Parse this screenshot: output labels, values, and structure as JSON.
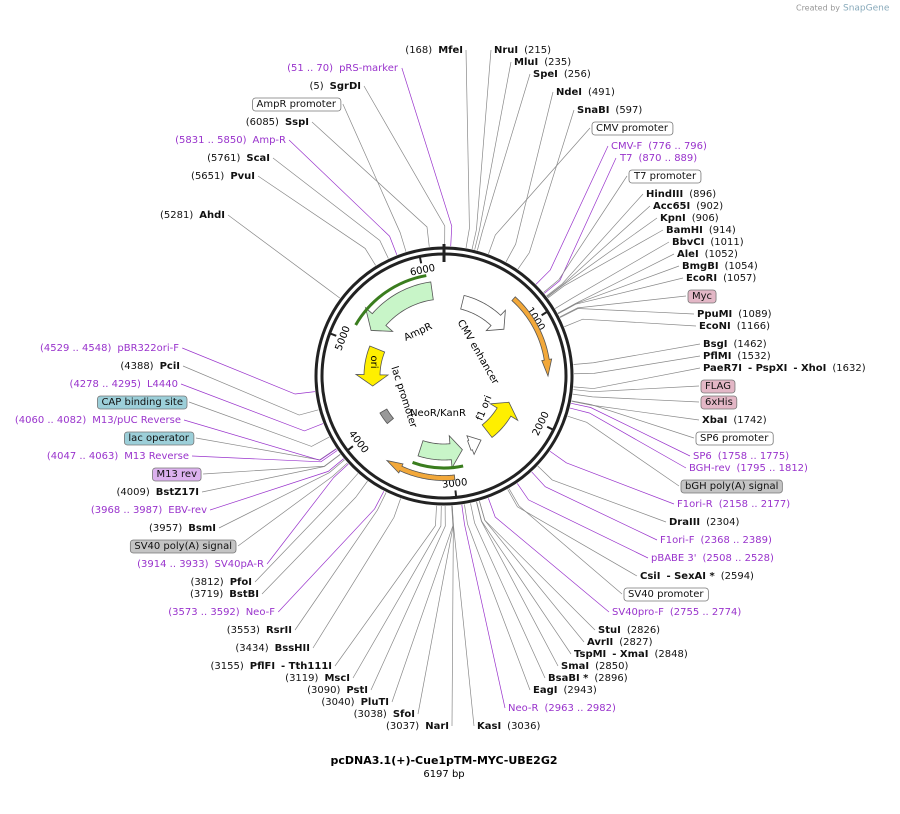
{
  "credit": "Created by",
  "brand": "SnapGene",
  "title": "pcDNA3.1(+)-Cue1pTM-MYC-UBE2G2",
  "length": "6197 bp",
  "ring_ticks": [
    1000,
    2000,
    3000,
    4000,
    5000,
    6000
  ],
  "inner_features": [
    "AmpR",
    "ori",
    "CMV enhancer",
    "lac promoter",
    "NeoR/KanR",
    "f1 ori"
  ],
  "labels": [
    {
      "names": [
        "MfeI"
      ],
      "site": "(168)"
    },
    {
      "names": [
        "NruI"
      ],
      "site": "(215)"
    },
    {
      "names": [
        "MluI"
      ],
      "site": "(235)"
    },
    {
      "names": [
        "SpeI"
      ],
      "site": "(256)"
    },
    {
      "names": [
        "NdeI"
      ],
      "site": "(491)"
    },
    {
      "names": [
        "SnaBI"
      ],
      "site": "(597)"
    },
    {
      "names": [
        "CMV promoter"
      ],
      "fill": "#ffffff"
    },
    {
      "names": [
        "CMV-F"
      ],
      "site": "(776 .. 796)",
      "color": "#9933cc"
    },
    {
      "names": [
        "T7"
      ],
      "site": "(870 .. 889)",
      "color": "#9933cc"
    },
    {
      "names": [
        "T7 promoter"
      ],
      "fill": "#ffffff"
    },
    {
      "names": [
        "HindIII"
      ],
      "site": "(896)"
    },
    {
      "names": [
        "Acc65I"
      ],
      "site": "(902)"
    },
    {
      "names": [
        "KpnI"
      ],
      "site": "(906)"
    },
    {
      "names": [
        "BamHI"
      ],
      "site": "(914)"
    },
    {
      "names": [
        "BbvCI"
      ],
      "site": "(1011)"
    },
    {
      "names": [
        "AleI"
      ],
      "site": "(1052)"
    },
    {
      "names": [
        "BmgBI"
      ],
      "site": "(1054)"
    },
    {
      "names": [
        "EcoRI"
      ],
      "site": "(1057)"
    },
    {
      "names": [
        "Myc"
      ],
      "fill": "#e3b7c6"
    },
    {
      "names": [
        "PpuMI"
      ],
      "site": "(1089)"
    },
    {
      "names": [
        "EcoNI"
      ],
      "site": "(1166)"
    },
    {
      "names": [
        "BsgI"
      ],
      "site": "(1462)"
    },
    {
      "names": [
        "PflMI"
      ],
      "site": "(1532)"
    },
    {
      "names": [
        "PaeR7I",
        "- PspXI",
        "- XhoI"
      ],
      "site": "(1632)"
    },
    {
      "names": [
        "FLAG"
      ],
      "fill": "#e3b7c6"
    },
    {
      "names": [
        "6xHis"
      ],
      "fill": "#e3b7c6"
    },
    {
      "names": [
        "XbaI"
      ],
      "site": "(1742)"
    },
    {
      "names": [
        "SP6 promoter"
      ],
      "fill": "#ffffff"
    },
    {
      "names": [
        "SP6"
      ],
      "site": "(1758 .. 1775)",
      "color": "#9933cc"
    },
    {
      "names": [
        "BGH-rev"
      ],
      "site": "(1795 .. 1812)",
      "color": "#9933cc"
    },
    {
      "names": [
        "bGH poly(A) signal"
      ],
      "fill": "#c4c4c4"
    },
    {
      "names": [
        "F1ori-R"
      ],
      "site": "(2158 .. 2177)",
      "color": "#9933cc"
    },
    {
      "names": [
        "DraIII"
      ],
      "site": "(2304)"
    },
    {
      "names": [
        "F1ori-F"
      ],
      "site": "(2368 .. 2389)",
      "color": "#9933cc"
    },
    {
      "names": [
        "pBABE 3'"
      ],
      "site": "(2508 .. 2528)",
      "color": "#9933cc"
    },
    {
      "names": [
        "CsiI",
        "- SexAI *"
      ],
      "site": "(2594)"
    },
    {
      "names": [
        "SV40 promoter"
      ],
      "fill": "#ffffff"
    },
    {
      "names": [
        "SV40pro-F"
      ],
      "site": "(2755 .. 2774)",
      "color": "#9933cc"
    },
    {
      "names": [
        "StuI"
      ],
      "site": "(2826)"
    },
    {
      "names": [
        "AvrII"
      ],
      "site": "(2827)"
    },
    {
      "names": [
        "TspMI",
        "- XmaI"
      ],
      "site": "(2848)"
    },
    {
      "names": [
        "SmaI"
      ],
      "site": "(2850)"
    },
    {
      "names": [
        "BsaBI *"
      ],
      "site": "(2896)"
    },
    {
      "names": [
        "EagI"
      ],
      "site": "(2943)"
    },
    {
      "names": [
        "Neo-R"
      ],
      "site": "(2963 .. 2982)",
      "color": "#9933cc"
    },
    {
      "names": [
        "KasI"
      ],
      "site": "(3036)"
    },
    {
      "names": [
        "NarI"
      ],
      "site": "(3037)"
    },
    {
      "names": [
        "SfoI"
      ],
      "site": "(3038)"
    },
    {
      "names": [
        "PluTI"
      ],
      "site": "(3040)"
    },
    {
      "names": [
        "PstI"
      ],
      "site": "(3090)"
    },
    {
      "names": [
        "MscI"
      ],
      "site": "(3119)"
    },
    {
      "names": [
        "PflFI",
        "- Tth111I"
      ],
      "site": "(3155)"
    },
    {
      "names": [
        "BssHII"
      ],
      "site": "(3434)"
    },
    {
      "names": [
        "RsrII"
      ],
      "site": "(3553)"
    },
    {
      "names": [
        "Neo-F"
      ],
      "site": "(3573 .. 3592)",
      "color": "#9933cc"
    },
    {
      "names": [
        "BstBI"
      ],
      "site": "(3719)"
    },
    {
      "names": [
        "PfoI"
      ],
      "site": "(3812)"
    },
    {
      "names": [
        "SV40pA-R"
      ],
      "site": "(3914 .. 3933)",
      "color": "#9933cc"
    },
    {
      "names": [
        "SV40 poly(A) signal"
      ],
      "fill": "#c4c4c4"
    },
    {
      "names": [
        "BsmI"
      ],
      "site": "(3957)"
    },
    {
      "names": [
        "EBV-rev"
      ],
      "site": "(3968 .. 3987)",
      "color": "#9933cc"
    },
    {
      "names": [
        "BstZ17I"
      ],
      "site": "(4009)"
    },
    {
      "names": [
        "M13 rev"
      ],
      "fill": "#dcb1ee"
    },
    {
      "names": [
        "M13 Reverse"
      ],
      "site": "(4047 .. 4063)",
      "color": "#9933cc"
    },
    {
      "names": [
        "lac operator"
      ],
      "fill": "#9ccfd9"
    },
    {
      "names": [
        "M13/pUC Reverse"
      ],
      "site": "(4060 .. 4082)",
      "color": "#9933cc"
    },
    {
      "names": [
        "CAP binding site"
      ],
      "fill": "#9ccfd9"
    },
    {
      "names": [
        "L4440"
      ],
      "site": "(4278 .. 4295)",
      "color": "#9933cc"
    },
    {
      "names": [
        "PciI"
      ],
      "site": "(4388)"
    },
    {
      "names": [
        "pBR322ori-F"
      ],
      "site": "(4529 .. 4548)",
      "color": "#9933cc"
    },
    {
      "names": [
        "AhdI"
      ],
      "site": "(5281)"
    },
    {
      "names": [
        "PvuI"
      ],
      "site": "(5651)"
    },
    {
      "names": [
        "ScaI"
      ],
      "site": "(5761)"
    },
    {
      "names": [
        "Amp-R"
      ],
      "site": "(5831 .. 5850)",
      "color": "#9933cc"
    },
    {
      "names": [
        "SspI"
      ],
      "site": "(6085)"
    },
    {
      "names": [
        "AmpR promoter"
      ],
      "fill": "#ffffff"
    },
    {
      "names": [
        "SgrDI"
      ],
      "site": "(5)"
    },
    {
      "names": [
        "pRS-marker"
      ],
      "site": "(51 .. 70)",
      "color": "#9933cc"
    }
  ]
}
